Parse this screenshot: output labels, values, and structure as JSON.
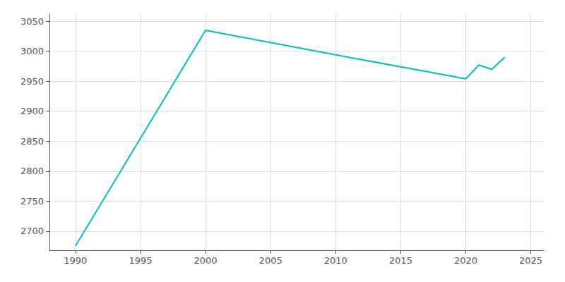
{
  "chart_data": {
    "type": "line",
    "x": [
      1990,
      2000,
      2010,
      2020,
      2021,
      2022,
      2023
    ],
    "values": [
      2675,
      3035,
      2994,
      2954,
      2977,
      2970,
      2990
    ],
    "color": "#00C0C0",
    "xlim": [
      1988,
      2026
    ],
    "ylim": [
      2668,
      3062
    ],
    "xticks": [
      1990,
      1995,
      2000,
      2005,
      2010,
      2015,
      2020,
      2025
    ],
    "yticks": [
      2700,
      2750,
      2800,
      2850,
      2900,
      2950,
      3000,
      3050
    ],
    "grid": true
  }
}
